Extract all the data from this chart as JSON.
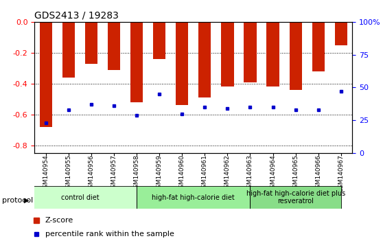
{
  "title": "GDS2413 / 19283",
  "samples": [
    "GSM140954",
    "GSM140955",
    "GSM140956",
    "GSM140957",
    "GSM140958",
    "GSM140959",
    "GSM140960",
    "GSM140961",
    "GSM140962",
    "GSM140963",
    "GSM140964",
    "GSM140965",
    "GSM140966",
    "GSM140967"
  ],
  "z_scores": [
    -0.68,
    -0.36,
    -0.27,
    -0.31,
    -0.52,
    -0.24,
    -0.54,
    -0.49,
    -0.42,
    -0.39,
    -0.42,
    -0.44,
    -0.32,
    -0.15
  ],
  "percentiles": [
    23,
    33,
    37,
    36,
    29,
    45,
    30,
    35,
    34,
    35,
    35,
    33,
    33,
    47
  ],
  "bar_color": "#cc2200",
  "dot_color": "#0000cc",
  "ylim_left": [
    -0.85,
    0.0
  ],
  "ylim_right": [
    0,
    100
  ],
  "yticks_left": [
    0.0,
    -0.2,
    -0.4,
    -0.6,
    -0.8
  ],
  "yticks_right": [
    0,
    25,
    50,
    75,
    100
  ],
  "ytick_labels_right": [
    "0",
    "25",
    "50",
    "75",
    "100%"
  ],
  "groups": [
    {
      "label": "control diet",
      "start": 0,
      "end": 4,
      "color": "#ccffcc"
    },
    {
      "label": "high-fat high-calorie diet",
      "start": 5,
      "end": 9,
      "color": "#99ee99"
    },
    {
      "label": "high-fat high-calorie diet plus\nresveratrol",
      "start": 10,
      "end": 13,
      "color": "#88dd88"
    }
  ],
  "protocol_label": "protocol",
  "legend_zscore": "Z-score",
  "legend_percentile": "percentile rank within the sample",
  "background_color": "#ffffff",
  "plot_bg_color": "#ffffff",
  "tick_bg_color": "#cccccc"
}
